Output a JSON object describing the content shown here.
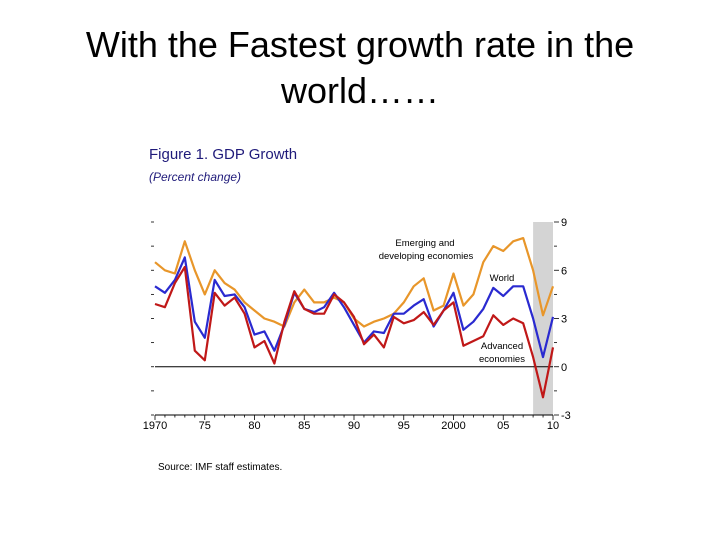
{
  "slide": {
    "title": "With the Fastest growth rate in the world……"
  },
  "figure": {
    "title": "Figure 1.  GDP Growth",
    "subtitle": "(Percent change)",
    "source": "Source: IMF staff estimates."
  },
  "chart_data": {
    "type": "line",
    "title": "Figure 1.  GDP Growth",
    "subtitle": "(Percent change)",
    "xlabel": "",
    "ylabel": "",
    "xlim": [
      1970,
      2010
    ],
    "ylim": [
      -3,
      9
    ],
    "x_ticks": [
      1970,
      1975,
      1980,
      1985,
      1990,
      1995,
      2000,
      2005,
      2010
    ],
    "x_tick_labels": [
      "1970",
      "75",
      "80",
      "85",
      "90",
      "95",
      "2000",
      "05",
      "10"
    ],
    "y_ticks": [
      9,
      6,
      3,
      0,
      -3
    ],
    "y_tick_labels": [
      "9",
      "6",
      "3",
      "0",
      "-3"
    ],
    "shaded_region": [
      2008.0,
      2010.0
    ],
    "x": [
      1970,
      1971,
      1972,
      1973,
      1974,
      1975,
      1976,
      1977,
      1978,
      1979,
      1980,
      1981,
      1982,
      1983,
      1984,
      1985,
      1986,
      1987,
      1988,
      1989,
      1990,
      1991,
      1992,
      1993,
      1994,
      1995,
      1996,
      1997,
      1998,
      1999,
      2000,
      2001,
      2002,
      2003,
      2004,
      2005,
      2006,
      2007,
      2008,
      2009,
      2010
    ],
    "series": [
      {
        "name": "Emerging and developing economies",
        "label": "Emerging and developing economies",
        "color": "#e8962a",
        "values": [
          6.5,
          6.0,
          5.8,
          7.8,
          6.0,
          4.5,
          6.0,
          5.2,
          4.8,
          4.0,
          3.5,
          3.0,
          2.8,
          2.5,
          4.0,
          4.8,
          4.0,
          4.0,
          4.3,
          4.0,
          3.0,
          2.5,
          2.8,
          3.0,
          3.3,
          4.0,
          5.0,
          5.5,
          3.5,
          3.8,
          5.8,
          3.8,
          4.5,
          6.5,
          7.5,
          7.2,
          7.8,
          8.0,
          6.0,
          3.2,
          5.0
        ]
      },
      {
        "name": "World",
        "label": "World",
        "color": "#2a2ad0",
        "values": [
          5.0,
          4.6,
          5.4,
          6.8,
          2.8,
          1.8,
          5.4,
          4.4,
          4.5,
          3.7,
          2.0,
          2.2,
          1.0,
          2.6,
          4.6,
          3.6,
          3.4,
          3.7,
          4.6,
          3.7,
          2.6,
          1.5,
          2.2,
          2.1,
          3.3,
          3.3,
          3.8,
          4.2,
          2.5,
          3.5,
          4.6,
          2.3,
          2.8,
          3.6,
          4.9,
          4.4,
          5.0,
          5.0,
          3.0,
          0.6,
          3.1
        ]
      },
      {
        "name": "Advanced economies",
        "label": "Advanced economies",
        "color": "#c01818",
        "values": [
          3.9,
          3.7,
          5.2,
          6.2,
          1.0,
          0.4,
          4.6,
          3.8,
          4.3,
          3.3,
          1.2,
          1.6,
          0.2,
          2.8,
          4.7,
          3.6,
          3.3,
          3.3,
          4.5,
          4.0,
          3.1,
          1.4,
          2.0,
          1.2,
          3.1,
          2.7,
          2.9,
          3.4,
          2.6,
          3.5,
          4.0,
          1.3,
          1.6,
          1.9,
          3.2,
          2.6,
          3.0,
          2.7,
          0.6,
          -1.9,
          1.2
        ]
      }
    ],
    "annotations": [
      {
        "text": "Emerging and developing economies",
        "line1": "Emerging and",
        "line2": "developing economies"
      },
      {
        "text": "World"
      },
      {
        "text": "Advanced economies",
        "line1": "Advanced",
        "line2": "economies"
      }
    ]
  },
  "colors": {
    "figure_text": "#1f1a7a",
    "axis": "#000000",
    "shade": "#d4d4d4"
  }
}
